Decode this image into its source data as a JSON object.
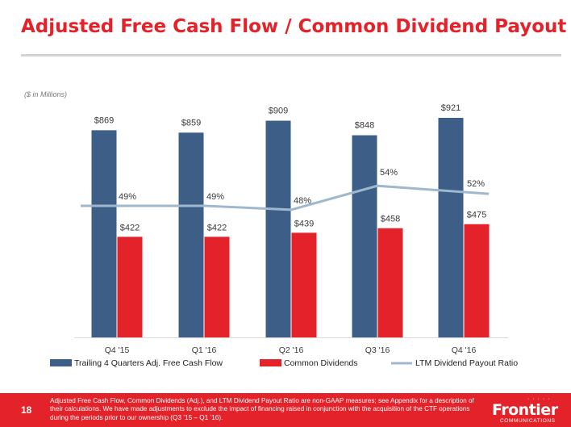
{
  "slide": {
    "title": "Adjusted Free Cash Flow / Common Dividend Payout",
    "unit_note": "($ in Millions)",
    "page_number": "18",
    "footnote": "Adjusted Free Cash Flow, Common Dividends (Adj.), and LTM Dividend Payout Ratio are non-GAAP measures; see Appendix for a description of their calculations.  We have made adjustments to exclude the impact of financing raised in conjunction with the acquisition of the CTF operations during the periods prior to our ownership (Q3 ’15 – Q1 ’16).",
    "logo": {
      "word": "Frontier",
      "sub": "COMMUNICATIONS",
      "dots": "· · · · ·"
    },
    "colors": {
      "brand_red": "#e42229",
      "rule": "#d3d3d3"
    }
  },
  "chart_data": {
    "type": "bar",
    "categories": [
      "Q4 '15",
      "Q1 '16",
      "Q2 '16",
      "Q3 '16",
      "Q4 '16"
    ],
    "series": [
      {
        "name": "Trailing 4 Quarters Adj. Free Cash Flow",
        "values": [
          869,
          859,
          909,
          848,
          921
        ],
        "labels": [
          "$869",
          "$859",
          "$909",
          "$848",
          "$921"
        ],
        "color": "#3d5f87",
        "kind": "bar"
      },
      {
        "name": "Common Dividends",
        "values": [
          422,
          422,
          439,
          458,
          475
        ],
        "labels": [
          "$422",
          "$422",
          "$439",
          "$458",
          "$475"
        ],
        "color": "#e42229",
        "kind": "bar"
      },
      {
        "name": "LTM Dividend Payout Ratio",
        "values": [
          49,
          49,
          48,
          54,
          52
        ],
        "labels": [
          "49%",
          "49%",
          "48%",
          "54%",
          "52%"
        ],
        "color": "#9fb8cd",
        "kind": "line",
        "unit": "%"
      }
    ],
    "ylim": [
      0,
      1000
    ],
    "ratio_ylim": [
      0,
      100
    ],
    "grid": false,
    "legend_position": "bottom"
  }
}
